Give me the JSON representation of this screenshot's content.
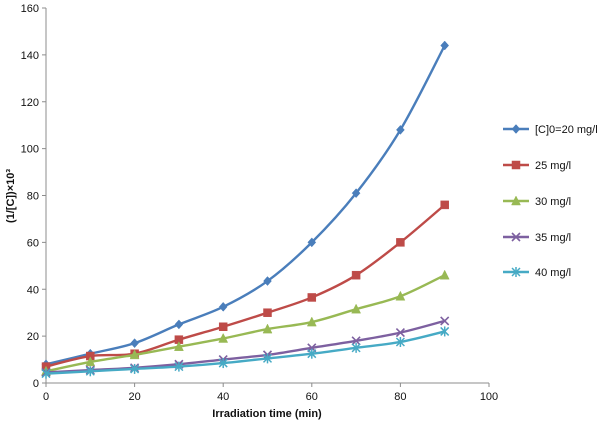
{
  "chart_data": {
    "type": "line",
    "title": "",
    "xlabel": "Irradiation time (min)",
    "ylabel": "(1/[C])×10³",
    "xlim": [
      0,
      100
    ],
    "ylim": [
      0,
      160
    ],
    "xticks": [
      0,
      20,
      40,
      60,
      80,
      100
    ],
    "yticks": [
      0,
      20,
      40,
      60,
      80,
      100,
      120,
      140,
      160
    ],
    "legend_position": "right",
    "x": [
      0,
      10,
      20,
      30,
      40,
      50,
      60,
      70,
      80,
      90
    ],
    "series": [
      {
        "name": "[C]0=20 mg/l",
        "color": "#4a7ebb",
        "marker": "diamond",
        "values": [
          8,
          12.5,
          17,
          25,
          32.5,
          43.5,
          60,
          81,
          108,
          144
        ]
      },
      {
        "name": "25 mg/l",
        "color": "#be4b48",
        "marker": "square",
        "values": [
          7,
          11.5,
          12.5,
          18.5,
          24,
          30,
          36.5,
          46,
          60,
          76
        ]
      },
      {
        "name": "30 mg/l",
        "color": "#98b954",
        "marker": "triangle",
        "values": [
          5,
          9,
          12,
          15.5,
          19,
          23,
          26,
          31.5,
          37,
          46
        ]
      },
      {
        "name": "35 mg/l",
        "color": "#7d60a0",
        "marker": "x",
        "values": [
          4.5,
          5.5,
          6.5,
          8,
          10,
          12,
          15,
          18,
          21.5,
          26.5
        ]
      },
      {
        "name": "40 mg/l",
        "color": "#46aac5",
        "marker": "star",
        "values": [
          4,
          5,
          6,
          7,
          8.5,
          10.5,
          12.5,
          15,
          17.5,
          22
        ]
      }
    ]
  }
}
